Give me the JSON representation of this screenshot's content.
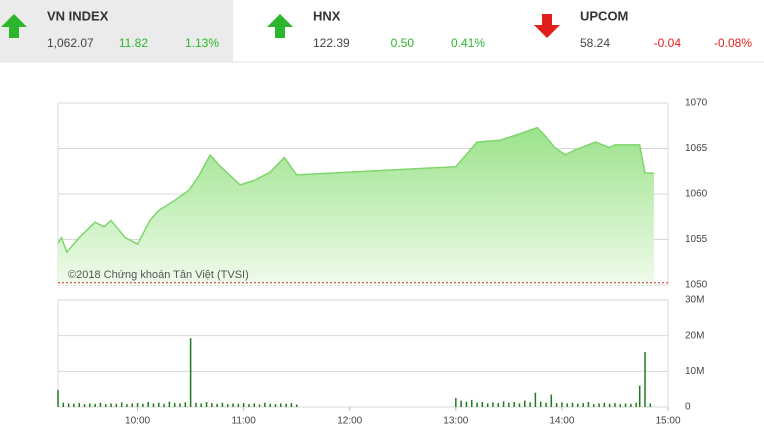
{
  "header": {
    "indices": [
      {
        "name": "VN INDEX",
        "value": "1,062.07",
        "change": "11.82",
        "percent": "1.13%",
        "direction": "up"
      },
      {
        "name": "HNX",
        "value": "122.39",
        "change": "0.50",
        "percent": "0.41%",
        "direction": "up"
      },
      {
        "name": "UPCOM",
        "value": "58.24",
        "change": "-0.04",
        "percent": "-0.08%",
        "direction": "down"
      }
    ]
  },
  "chart_data": [
    {
      "type": "area",
      "annotation": "©2018 Chứng khoán Tân Việt (TVSI)",
      "x": [
        555,
        557,
        560,
        567,
        576,
        581,
        585,
        593,
        600,
        607,
        612,
        621,
        629,
        635,
        641,
        646,
        658,
        666,
        675,
        683,
        690,
        780,
        788,
        792,
        805,
        816,
        826,
        830,
        836,
        842,
        847,
        859,
        867,
        870,
        884,
        887,
        892
      ],
      "values": [
        1054.6,
        1055.2,
        1053.6,
        1055.2,
        1056.9,
        1056.4,
        1057.1,
        1055.2,
        1054.5,
        1057.1,
        1058.2,
        1059.3,
        1060.4,
        1062.1,
        1064.3,
        1063.2,
        1061.0,
        1061.5,
        1062.4,
        1064.0,
        1062.1,
        1063.0,
        1064.8,
        1065.7,
        1065.9,
        1066.6,
        1067.3,
        1066.5,
        1065.1,
        1064.3,
        1064.8,
        1065.7,
        1065.1,
        1065.4,
        1065.4,
        1062.3,
        1062.3
      ],
      "color": "#7ed66a",
      "reference_line": 1050.25,
      "reference_color": "#d32f2f",
      "xlim": [
        555,
        900
      ],
      "ylim": [
        1050,
        1070
      ],
      "yticks": [
        1050,
        1055,
        1060,
        1065,
        1070
      ],
      "grid": true
    },
    {
      "type": "bar",
      "color": "#1f7a1f",
      "x": [
        555,
        558,
        561,
        564,
        567,
        570,
        573,
        576,
        579,
        582,
        585,
        588,
        591,
        594,
        597,
        600,
        603,
        606,
        609,
        612,
        615,
        618,
        621,
        624,
        627,
        630,
        633,
        636,
        639,
        642,
        645,
        648,
        651,
        654,
        657,
        660,
        663,
        666,
        669,
        672,
        675,
        678,
        681,
        684,
        687,
        690,
        780,
        783,
        786,
        789,
        792,
        795,
        798,
        801,
        804,
        807,
        810,
        813,
        816,
        819,
        822,
        825,
        828,
        831,
        834,
        837,
        840,
        843,
        846,
        849,
        852,
        855,
        858,
        861,
        864,
        867,
        870,
        873,
        876,
        879,
        882,
        884,
        887,
        890
      ],
      "values": [
        4.8,
        1.2,
        1.0,
        0.9,
        1.1,
        0.8,
        1.0,
        0.9,
        1.2,
        0.8,
        1.0,
        0.9,
        1.3,
        0.8,
        1.0,
        1.1,
        0.9,
        1.4,
        1.0,
        1.2,
        0.9,
        1.5,
        1.1,
        1.0,
        1.3,
        19.3,
        1.2,
        1.0,
        1.4,
        1.1,
        0.9,
        1.2,
        0.8,
        1.0,
        0.9,
        1.1,
        0.8,
        1.0,
        0.7,
        1.2,
        0.9,
        0.8,
        1.0,
        0.9,
        1.1,
        0.7,
        2.5,
        1.8,
        1.5,
        2.0,
        1.2,
        1.4,
        1.0,
        1.3,
        1.1,
        1.6,
        1.2,
        1.4,
        1.0,
        1.8,
        1.3,
        4.0,
        1.5,
        1.2,
        3.5,
        1.1,
        1.3,
        1.0,
        1.2,
        0.9,
        1.1,
        1.4,
        0.8,
        1.0,
        1.2,
        0.9,
        1.1,
        0.8,
        1.0,
        0.9,
        1.2,
        6.0,
        15.4,
        1.0
      ],
      "xlim": [
        555,
        900
      ],
      "xticks": [
        {
          "value": 600,
          "label": "10:00"
        },
        {
          "value": 660,
          "label": "11:00"
        },
        {
          "value": 720,
          "label": "12:00"
        },
        {
          "value": 780,
          "label": "13:00"
        },
        {
          "value": 840,
          "label": "14:00"
        },
        {
          "value": 900,
          "label": "15:00"
        }
      ],
      "ylim": [
        0,
        30
      ],
      "yticks": [
        0,
        {
          "value": 10,
          "label": "10M"
        },
        {
          "value": 20,
          "label": "20M"
        },
        {
          "value": 30,
          "label": "30M"
        }
      ],
      "grid": true
    }
  ]
}
